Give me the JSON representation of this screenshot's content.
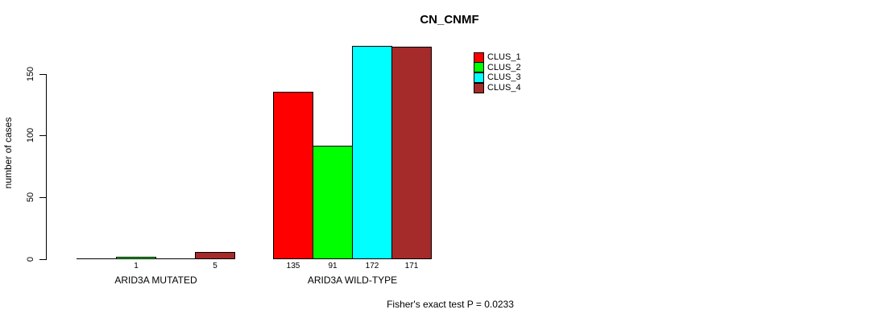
{
  "title": "CN_CNMF",
  "footer": "Fisher's exact test P = 0.0233",
  "chart_data": {
    "type": "bar",
    "title": "CN_CNMF",
    "xlabel": "",
    "ylabel": "number of cases",
    "yticks": [
      0,
      50,
      100,
      150
    ],
    "ylim": [
      0,
      172
    ],
    "grid": false,
    "legend_position": "top-right",
    "categories": [
      "ARID3A MUTATED",
      "ARID3A WILD-TYPE"
    ],
    "series": [
      {
        "name": "CLUS_1",
        "color": "#ff0000",
        "values": [
          0,
          135
        ]
      },
      {
        "name": "CLUS_2",
        "color": "#00ff00",
        "values": [
          1,
          91
        ]
      },
      {
        "name": "CLUS_3",
        "color": "#00ffff",
        "values": [
          0,
          172
        ]
      },
      {
        "name": "CLUS_4",
        "color": "#a52a2a",
        "values": [
          5,
          171
        ]
      }
    ],
    "bar_value_labels_shown": [
      "1",
      "5",
      "135",
      "91",
      "172",
      "171"
    ],
    "annotation": "Fisher's exact test P = 0.0233"
  }
}
